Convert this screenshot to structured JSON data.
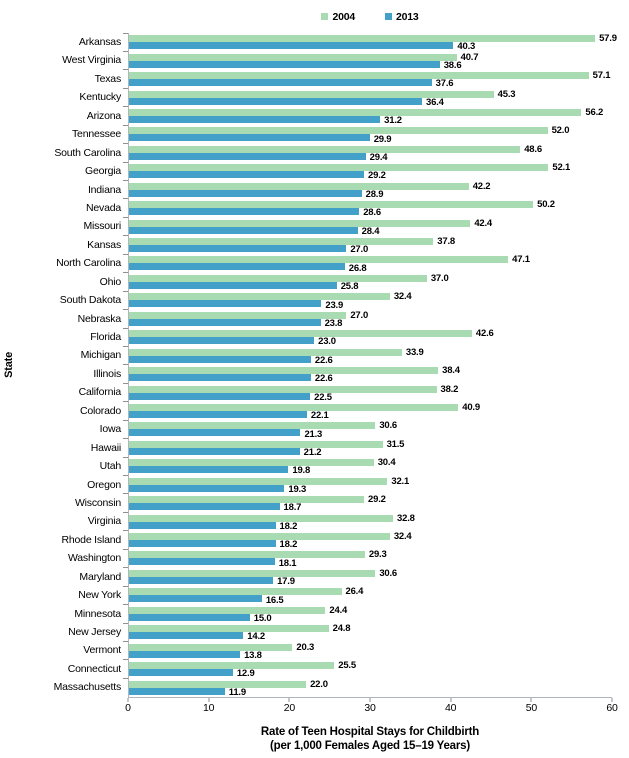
{
  "chart_data": {
    "type": "bar",
    "orientation": "horizontal",
    "ylabel": "State",
    "xlabel_line1": "Rate of Teen Hospital Stays for Childbirth",
    "xlabel_line2": "(per 1,000 Females Aged 15–19 Years)",
    "xlim": [
      0,
      60
    ],
    "x_ticks": [
      0,
      10,
      20,
      30,
      40,
      50,
      60
    ],
    "grid": false,
    "legend_position": "top",
    "value_labels": true,
    "axis_line_color": "#aeb6bc",
    "tick_color": "#8a9199",
    "categories": [
      "Arkansas",
      "West Virginia",
      "Texas",
      "Kentucky",
      "Arizona",
      "Tennessee",
      "South Carolina",
      "Georgia",
      "Indiana",
      "Nevada",
      "Missouri",
      "Kansas",
      "North Carolina",
      "Ohio",
      "South Dakota",
      "Nebraska",
      "Florida",
      "Michigan",
      "Illinois",
      "California",
      "Colorado",
      "Iowa",
      "Hawaii",
      "Utah",
      "Oregon",
      "Wisconsin",
      "Virginia",
      "Rhode Island",
      "Washington",
      "Maryland",
      "New York",
      "Minnesota",
      "New Jersey",
      "Vermont",
      "Connecticut",
      "Massachusetts"
    ],
    "series": [
      {
        "name": "2004",
        "color": "#a8dbb2",
        "values": [
          57.9,
          40.7,
          57.1,
          45.3,
          56.2,
          52.0,
          48.6,
          52.1,
          42.2,
          50.2,
          42.4,
          37.8,
          47.1,
          37.0,
          32.4,
          27.0,
          42.6,
          33.9,
          38.4,
          38.2,
          40.9,
          30.6,
          31.5,
          30.4,
          32.1,
          29.2,
          32.8,
          32.4,
          29.3,
          30.6,
          26.4,
          24.4,
          24.8,
          20.3,
          25.5,
          22.0
        ]
      },
      {
        "name": "2013",
        "color": "#42a0c9",
        "values": [
          40.3,
          38.6,
          37.6,
          36.4,
          31.2,
          29.9,
          29.4,
          29.2,
          28.9,
          28.6,
          28.4,
          27.0,
          26.8,
          25.8,
          23.9,
          23.8,
          23.0,
          22.6,
          22.6,
          22.5,
          22.1,
          21.3,
          21.2,
          19.8,
          19.3,
          18.7,
          18.2,
          18.2,
          18.1,
          17.9,
          16.5,
          15.0,
          14.2,
          13.8,
          12.9,
          11.9
        ]
      }
    ]
  }
}
